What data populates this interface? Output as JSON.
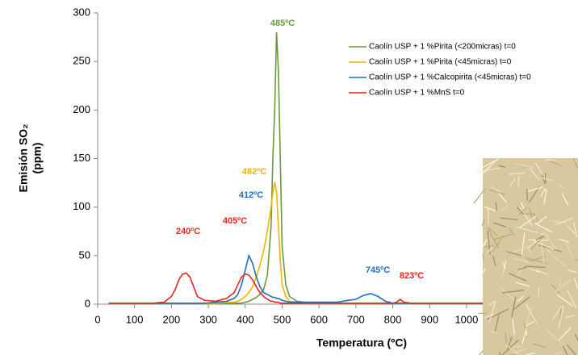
{
  "chart_data": {
    "type": "line",
    "xlabel": "Temperatura (ºC)",
    "ylabel": [
      "Emisión SO₂",
      "(ppm)"
    ],
    "xlim": [
      0,
      1300
    ],
    "ylim": [
      0,
      300
    ],
    "xticks": [
      0,
      100,
      200,
      300,
      400,
      500,
      600,
      700,
      800,
      900,
      1000
    ],
    "yticks": [
      0,
      50,
      100,
      150,
      200,
      250,
      300
    ],
    "legend": "upper right",
    "x": [
      30,
      100,
      150,
      180,
      200,
      210,
      220,
      230,
      240,
      250,
      260,
      270,
      290,
      320,
      350,
      370,
      380,
      390,
      400,
      410,
      420,
      430,
      440,
      450,
      460,
      470,
      475,
      480,
      485,
      490,
      495,
      500,
      510,
      520,
      540,
      560,
      600,
      650,
      680,
      700,
      720,
      740,
      760,
      780,
      800,
      810,
      820,
      830,
      850,
      900,
      1000,
      1100,
      1200,
      1300
    ],
    "series": [
      {
        "name": "Caolín USP + 1 %Pirita (<200micras) t=0",
        "color": "#6a9a3a",
        "values": [
          1,
          1,
          1,
          1,
          1,
          1,
          1,
          1,
          1,
          1,
          1,
          1,
          1,
          1,
          1,
          1,
          1,
          1,
          2,
          3,
          5,
          7,
          10,
          15,
          30,
          80,
          150,
          200,
          280,
          240,
          150,
          60,
          20,
          8,
          3,
          2,
          1,
          1,
          1,
          1,
          1,
          1,
          1,
          1,
          1,
          1,
          1,
          1,
          1,
          1,
          1,
          1,
          1,
          1
        ]
      },
      {
        "name": "Caolín USP + 1 %Pirita (<45micras) t=0",
        "color": "#f4b400",
        "values": [
          1,
          1,
          1,
          1,
          1,
          1,
          1,
          1,
          1,
          1,
          1,
          1,
          1,
          1,
          2,
          2,
          3,
          5,
          8,
          12,
          18,
          28,
          40,
          55,
          75,
          100,
          115,
          126,
          115,
          80,
          45,
          20,
          8,
          3,
          2,
          1,
          1,
          1,
          1,
          1,
          1,
          1,
          1,
          1,
          1,
          1,
          1,
          1,
          1,
          1,
          1,
          1,
          1,
          1
        ]
      },
      {
        "name": "Caolín USP + 1 %Calcopirita (<45micras) t=0",
        "color": "#1f6fc0",
        "values": [
          1,
          1,
          1,
          1,
          1,
          1,
          1,
          1,
          1,
          1,
          1,
          1,
          1,
          2,
          3,
          6,
          10,
          20,
          35,
          50,
          42,
          28,
          18,
          12,
          10,
          8,
          7,
          7,
          6,
          6,
          5,
          4,
          3,
          2,
          2,
          2,
          2,
          2,
          4,
          5,
          9,
          11,
          8,
          3,
          1,
          1,
          1,
          1,
          1,
          1,
          1,
          1,
          1,
          1
        ]
      },
      {
        "name": "Caolín USP + 1 %MnS t=0",
        "color": "#e8251c",
        "values": [
          1,
          1,
          1,
          2,
          8,
          15,
          25,
          31,
          32,
          28,
          18,
          8,
          4,
          3,
          6,
          12,
          20,
          28,
          31,
          30,
          25,
          18,
          12,
          8,
          5,
          3,
          3,
          2,
          2,
          2,
          1,
          1,
          1,
          1,
          1,
          1,
          1,
          1,
          1,
          1,
          1,
          1,
          1,
          1,
          1,
          2,
          5,
          2,
          1,
          1,
          1,
          1,
          1,
          1
        ]
      }
    ],
    "annotations": [
      {
        "text": "485ºC",
        "color": "#6a9a3a"
      },
      {
        "text": "482ºC",
        "color": "#f4b400"
      },
      {
        "text": "412ºC",
        "color": "#1f6fc0"
      },
      {
        "text": "240ºC",
        "color": "#e8251c"
      },
      {
        "text": "405ºC",
        "color": "#e8251c"
      },
      {
        "text": "745ºC",
        "color": "#1f6fc0"
      },
      {
        "text": "823ºC",
        "color": "#e8251c"
      }
    ]
  }
}
